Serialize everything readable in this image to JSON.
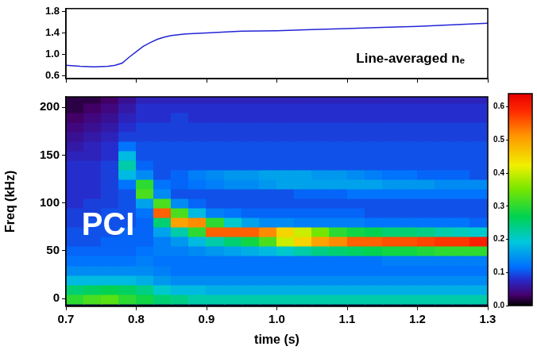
{
  "chart_data": [
    {
      "type": "line",
      "x": [
        0.7,
        0.72,
        0.74,
        0.76,
        0.77,
        0.78,
        0.79,
        0.8,
        0.81,
        0.82,
        0.83,
        0.84,
        0.85,
        0.87,
        0.9,
        0.95,
        1.0,
        1.05,
        1.1,
        1.15,
        1.2,
        1.25,
        1.3
      ],
      "values": [
        0.8,
        0.78,
        0.77,
        0.78,
        0.8,
        0.84,
        0.95,
        1.05,
        1.15,
        1.22,
        1.28,
        1.32,
        1.35,
        1.38,
        1.4,
        1.43,
        1.44,
        1.46,
        1.48,
        1.5,
        1.52,
        1.55,
        1.58
      ],
      "color": "#2424d6",
      "xlim": [
        0.7,
        1.3
      ],
      "xticks": [
        0.7,
        0.8,
        0.9,
        {
          "value": 1,
          "label": "1.0"
        },
        1.1,
        1.2,
        1.3
      ],
      "ylim": [
        0.55,
        1.85
      ],
      "yticks": [
        0.6,
        {
          "value": 1,
          "label": "1.0"
        },
        1.4,
        1.8
      ],
      "grid": false,
      "tick_labels": "y",
      "annotations": [
        {
          "text": "Line-averaged nₑ",
          "x": 1.19,
          "y": 0.92
        }
      ]
    },
    {
      "type": "heatmap",
      "xlabel": "time (s)",
      "ylabel": "Freq (kHz)",
      "x": [
        0.7125,
        0.7375,
        0.7625,
        0.7875,
        0.8125,
        0.8375,
        0.8625,
        0.8875,
        0.9125,
        0.9375,
        0.9625,
        0.9875,
        1.0125,
        1.0375,
        1.0625,
        1.0875,
        1.1125,
        1.1375,
        1.1625,
        1.1875,
        1.2125,
        1.2375,
        1.2625,
        1.2875
      ],
      "y": [
        0,
        10,
        20,
        30,
        40,
        50,
        60,
        70,
        80,
        90,
        100,
        110,
        120,
        130,
        140,
        150,
        160,
        170,
        180,
        190,
        200,
        210
      ],
      "cells": [
        [
          0.3,
          0.32,
          0.33,
          0.3,
          0.28,
          0.25,
          0.24,
          0.22,
          0.22,
          0.22,
          0.22,
          0.22,
          0.22,
          0.22,
          0.22,
          0.22,
          0.22,
          0.22,
          0.22,
          0.22,
          0.22,
          0.22,
          0.22,
          0.22
        ],
        [
          0.25,
          0.26,
          0.27,
          0.26,
          0.24,
          0.2,
          0.18,
          0.18,
          0.17,
          0.17,
          0.17,
          0.17,
          0.17,
          0.17,
          0.17,
          0.17,
          0.17,
          0.17,
          0.17,
          0.17,
          0.17,
          0.17,
          0.17,
          0.17
        ],
        [
          0.18,
          0.18,
          0.18,
          0.18,
          0.17,
          0.15,
          0.14,
          0.14,
          0.14,
          0.14,
          0.14,
          0.14,
          0.14,
          0.14,
          0.14,
          0.14,
          0.14,
          0.14,
          0.14,
          0.14,
          0.14,
          0.14,
          0.14,
          0.14
        ],
        [
          0.14,
          0.14,
          0.14,
          0.14,
          0.14,
          0.13,
          0.12,
          0.12,
          0.12,
          0.12,
          0.12,
          0.12,
          0.12,
          0.12,
          0.12,
          0.12,
          0.12,
          0.12,
          0.12,
          0.12,
          0.12,
          0.12,
          0.12,
          0.12
        ],
        [
          0.12,
          0.12,
          0.12,
          0.12,
          0.13,
          0.12,
          0.12,
          0.12,
          0.12,
          0.12,
          0.12,
          0.12,
          0.12,
          0.12,
          0.12,
          0.12,
          0.12,
          0.12,
          0.13,
          0.13,
          0.13,
          0.13,
          0.13,
          0.13
        ],
        [
          0.11,
          0.11,
          0.11,
          0.11,
          0.12,
          0.13,
          0.13,
          0.14,
          0.15,
          0.16,
          0.17,
          0.18,
          0.2,
          0.22,
          0.24,
          0.25,
          0.26,
          0.27,
          0.28,
          0.28,
          0.29,
          0.3,
          0.3,
          0.3
        ],
        [
          0.1,
          0.1,
          0.11,
          0.11,
          0.11,
          0.13,
          0.15,
          0.18,
          0.22,
          0.25,
          0.28,
          0.32,
          0.4,
          0.45,
          0.5,
          0.52,
          0.55,
          0.55,
          0.56,
          0.56,
          0.57,
          0.58,
          0.58,
          0.6
        ],
        [
          0.1,
          0.1,
          0.1,
          0.11,
          0.11,
          0.16,
          0.22,
          0.3,
          0.55,
          0.55,
          0.55,
          0.52,
          0.45,
          0.4,
          0.35,
          0.3,
          0.28,
          0.27,
          0.25,
          0.25,
          0.24,
          0.22,
          0.21,
          0.2
        ],
        [
          0.09,
          0.1,
          0.1,
          0.1,
          0.11,
          0.25,
          0.5,
          0.52,
          0.3,
          0.2,
          0.16,
          0.14,
          0.14,
          0.13,
          0.13,
          0.13,
          0.13,
          0.12,
          0.12,
          0.12,
          0.12,
          0.12,
          0.12,
          0.11
        ],
        [
          0.09,
          0.09,
          0.1,
          0.1,
          0.12,
          0.55,
          0.32,
          0.18,
          0.13,
          0.12,
          0.11,
          0.11,
          0.11,
          0.11,
          0.11,
          0.11,
          0.11,
          0.1,
          0.1,
          0.1,
          0.1,
          0.1,
          0.1,
          0.1
        ],
        [
          0.08,
          0.09,
          0.09,
          0.1,
          0.16,
          0.32,
          0.14,
          0.11,
          0.1,
          0.1,
          0.1,
          0.1,
          0.1,
          0.1,
          0.1,
          0.1,
          0.1,
          0.1,
          0.1,
          0.1,
          0.1,
          0.1,
          0.1,
          0.1
        ],
        [
          0.08,
          0.08,
          0.09,
          0.1,
          0.32,
          0.14,
          0.1,
          0.1,
          0.1,
          0.1,
          0.1,
          0.1,
          0.1,
          0.11,
          0.11,
          0.11,
          0.12,
          0.12,
          0.12,
          0.12,
          0.12,
          0.12,
          0.12,
          0.12
        ],
        [
          0.08,
          0.08,
          0.09,
          0.12,
          0.3,
          0.12,
          0.11,
          0.12,
          0.13,
          0.14,
          0.14,
          0.15,
          0.16,
          0.16,
          0.16,
          0.16,
          0.16,
          0.16,
          0.15,
          0.15,
          0.15,
          0.14,
          0.14,
          0.14
        ],
        [
          0.08,
          0.08,
          0.09,
          0.18,
          0.14,
          0.1,
          0.11,
          0.13,
          0.14,
          0.15,
          0.15,
          0.16,
          0.16,
          0.16,
          0.15,
          0.15,
          0.14,
          0.13,
          0.12,
          0.12,
          0.11,
          0.11,
          0.11,
          0.1
        ],
        [
          0.08,
          0.08,
          0.09,
          0.22,
          0.11,
          0.1,
          0.1,
          0.1,
          0.1,
          0.1,
          0.1,
          0.1,
          0.1,
          0.1,
          0.1,
          0.1,
          0.1,
          0.1,
          0.1,
          0.1,
          0.1,
          0.1,
          0.1,
          0.1
        ],
        [
          0.07,
          0.07,
          0.08,
          0.18,
          0.1,
          0.1,
          0.1,
          0.1,
          0.1,
          0.1,
          0.1,
          0.1,
          0.1,
          0.1,
          0.1,
          0.1,
          0.1,
          0.1,
          0.1,
          0.1,
          0.1,
          0.1,
          0.1,
          0.1
        ],
        [
          0.06,
          0.07,
          0.08,
          0.12,
          0.1,
          0.1,
          0.1,
          0.1,
          0.1,
          0.1,
          0.1,
          0.1,
          0.1,
          0.1,
          0.1,
          0.1,
          0.1,
          0.1,
          0.1,
          0.1,
          0.1,
          0.1,
          0.1,
          0.1
        ],
        [
          0.05,
          0.06,
          0.07,
          0.09,
          0.09,
          0.09,
          0.09,
          0.09,
          0.09,
          0.09,
          0.09,
          0.09,
          0.09,
          0.09,
          0.09,
          0.09,
          0.09,
          0.09,
          0.09,
          0.09,
          0.09,
          0.09,
          0.09,
          0.09
        ],
        [
          0.04,
          0.05,
          0.06,
          0.08,
          0.09,
          0.09,
          0.09,
          0.09,
          0.09,
          0.09,
          0.09,
          0.09,
          0.09,
          0.09,
          0.09,
          0.09,
          0.09,
          0.09,
          0.09,
          0.09,
          0.09,
          0.09,
          0.09,
          0.09
        ],
        [
          0.03,
          0.04,
          0.05,
          0.07,
          0.08,
          0.08,
          0.09,
          0.08,
          0.08,
          0.08,
          0.08,
          0.08,
          0.08,
          0.08,
          0.08,
          0.08,
          0.08,
          0.08,
          0.08,
          0.08,
          0.08,
          0.08,
          0.08,
          0.08
        ],
        [
          0.02,
          0.03,
          0.04,
          0.06,
          0.08,
          0.08,
          0.08,
          0.08,
          0.08,
          0.08,
          0.08,
          0.08,
          0.08,
          0.08,
          0.08,
          0.08,
          0.08,
          0.08,
          0.08,
          0.08,
          0.08,
          0.08,
          0.08,
          0.08
        ],
        [
          0.02,
          0.02,
          0.03,
          0.05,
          0.07,
          0.07,
          0.07,
          0.07,
          0.07,
          0.07,
          0.07,
          0.07,
          0.07,
          0.07,
          0.07,
          0.07,
          0.07,
          0.07,
          0.07,
          0.07,
          0.07,
          0.07,
          0.07,
          0.07
        ]
      ],
      "xlim": [
        0.7,
        1.3
      ],
      "xticks": [
        0.7,
        0.8,
        0.9,
        {
          "value": 1,
          "label": "1.0"
        },
        1.1,
        1.2,
        1.3
      ],
      "ylim": [
        -8,
        211
      ],
      "yticks": [
        0,
        50,
        100,
        150,
        200
      ],
      "grid": false,
      "colorbar": {
        "range": [
          0,
          0.64
        ],
        "ticks": [
          {
            "value": 0,
            "label": "0.0"
          },
          0.1,
          0.2,
          0.3,
          0.4,
          0.5,
          0.6
        ]
      },
      "annotations": [
        {
          "text": "PCI",
          "x": 0.76,
          "y": 76
        }
      ]
    }
  ]
}
